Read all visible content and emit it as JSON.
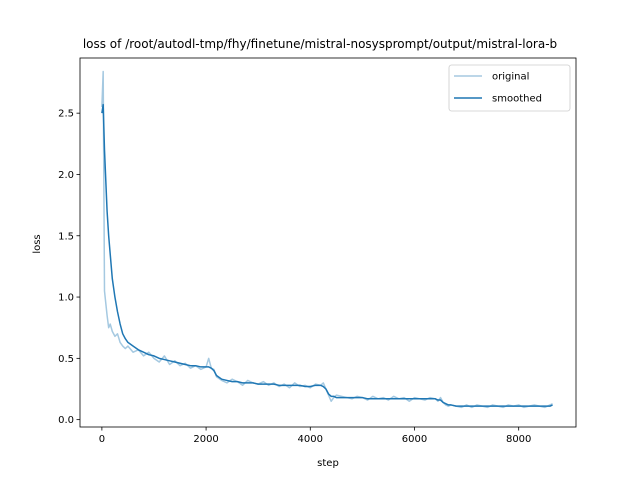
{
  "chart_data": {
    "type": "line",
    "title": "loss of /root/autodl-tmp/fhy/finetune/mistral-nosysprompt/output/mistral-lora-b",
    "xlabel": "step",
    "ylabel": "loss",
    "xlim": [
      -420,
      9100
    ],
    "ylim": [
      -0.06,
      2.95
    ],
    "xticks": [
      0,
      2000,
      4000,
      6000,
      8000
    ],
    "xtick_labels": [
      "0",
      "2000",
      "4000",
      "6000",
      "8000"
    ],
    "yticks": [
      0.0,
      0.5,
      1.0,
      1.5,
      2.0,
      2.5
    ],
    "ytick_labels": [
      "0.0",
      "0.5",
      "1.0",
      "1.5",
      "2.0",
      "2.5"
    ],
    "grid": false,
    "legend_position": "top-right",
    "series": [
      {
        "name": "original",
        "color": "#1f77b4",
        "opacity": 0.4,
        "x": [
          0,
          25,
          50,
          75,
          100,
          130,
          160,
          200,
          250,
          300,
          350,
          400,
          450,
          500,
          600,
          700,
          800,
          900,
          1000,
          1100,
          1200,
          1300,
          1400,
          1500,
          1600,
          1700,
          1800,
          1900,
          2000,
          2050,
          2100,
          2150,
          2200,
          2300,
          2400,
          2500,
          2600,
          2700,
          2800,
          2900,
          3000,
          3100,
          3200,
          3300,
          3400,
          3500,
          3600,
          3700,
          3800,
          3900,
          4000,
          4100,
          4200,
          4250,
          4300,
          4350,
          4400,
          4450,
          4500,
          4600,
          4700,
          4800,
          4900,
          5000,
          5100,
          5200,
          5300,
          5400,
          5500,
          5600,
          5700,
          5800,
          5900,
          6000,
          6100,
          6200,
          6300,
          6400,
          6450,
          6500,
          6550,
          6600,
          6650,
          6700,
          6800,
          6900,
          7000,
          7100,
          7200,
          7300,
          7400,
          7500,
          7600,
          7700,
          7800,
          7900,
          8000,
          8100,
          8200,
          8300,
          8400,
          8500,
          8600,
          8650
        ],
        "y": [
          2.55,
          2.84,
          1.05,
          0.95,
          0.85,
          0.75,
          0.78,
          0.72,
          0.68,
          0.7,
          0.63,
          0.6,
          0.58,
          0.6,
          0.55,
          0.57,
          0.52,
          0.55,
          0.5,
          0.47,
          0.52,
          0.45,
          0.48,
          0.44,
          0.46,
          0.42,
          0.44,
          0.41,
          0.43,
          0.5,
          0.42,
          0.41,
          0.35,
          0.32,
          0.3,
          0.33,
          0.31,
          0.28,
          0.32,
          0.3,
          0.29,
          0.31,
          0.28,
          0.3,
          0.27,
          0.29,
          0.26,
          0.3,
          0.27,
          0.28,
          0.26,
          0.29,
          0.28,
          0.3,
          0.25,
          0.2,
          0.15,
          0.18,
          0.2,
          0.19,
          0.18,
          0.17,
          0.19,
          0.18,
          0.16,
          0.19,
          0.17,
          0.18,
          0.16,
          0.19,
          0.17,
          0.18,
          0.15,
          0.18,
          0.17,
          0.16,
          0.18,
          0.17,
          0.15,
          0.18,
          0.14,
          0.12,
          0.11,
          0.12,
          0.11,
          0.1,
          0.12,
          0.1,
          0.12,
          0.11,
          0.1,
          0.12,
          0.11,
          0.1,
          0.12,
          0.11,
          0.12,
          0.1,
          0.11,
          0.12,
          0.11,
          0.1,
          0.12,
          0.13
        ]
      },
      {
        "name": "smoothed",
        "color": "#1f77b4",
        "opacity": 1.0,
        "x": [
          0,
          25,
          50,
          75,
          100,
          130,
          160,
          200,
          250,
          300,
          350,
          400,
          450,
          500,
          600,
          700,
          800,
          900,
          1000,
          1100,
          1200,
          1300,
          1400,
          1500,
          1600,
          1700,
          1800,
          1900,
          2000,
          2050,
          2100,
          2150,
          2200,
          2300,
          2400,
          2500,
          2600,
          2700,
          2800,
          2900,
          3000,
          3100,
          3200,
          3300,
          3400,
          3500,
          3600,
          3700,
          3800,
          3900,
          4000,
          4100,
          4200,
          4250,
          4300,
          4350,
          4400,
          4450,
          4500,
          4600,
          4700,
          4800,
          4900,
          5000,
          5100,
          5200,
          5300,
          5400,
          5500,
          5600,
          5700,
          5800,
          5900,
          6000,
          6100,
          6200,
          6300,
          6400,
          6450,
          6500,
          6550,
          6600,
          6650,
          6700,
          6800,
          6900,
          7000,
          7100,
          7200,
          7300,
          7400,
          7500,
          7600,
          7700,
          7800,
          7900,
          8000,
          8100,
          8200,
          8300,
          8400,
          8500,
          8600,
          8650
        ],
        "y": [
          2.5,
          2.57,
          2.2,
          1.95,
          1.7,
          1.5,
          1.35,
          1.15,
          1.0,
          0.88,
          0.78,
          0.7,
          0.66,
          0.63,
          0.6,
          0.57,
          0.55,
          0.53,
          0.52,
          0.5,
          0.49,
          0.48,
          0.47,
          0.46,
          0.45,
          0.44,
          0.44,
          0.43,
          0.43,
          0.43,
          0.42,
          0.4,
          0.36,
          0.33,
          0.32,
          0.31,
          0.31,
          0.3,
          0.3,
          0.3,
          0.29,
          0.29,
          0.29,
          0.29,
          0.28,
          0.28,
          0.28,
          0.28,
          0.28,
          0.27,
          0.27,
          0.28,
          0.28,
          0.27,
          0.25,
          0.21,
          0.19,
          0.19,
          0.18,
          0.18,
          0.18,
          0.18,
          0.18,
          0.18,
          0.17,
          0.17,
          0.17,
          0.17,
          0.17,
          0.17,
          0.17,
          0.17,
          0.17,
          0.17,
          0.17,
          0.17,
          0.17,
          0.17,
          0.16,
          0.16,
          0.14,
          0.13,
          0.12,
          0.12,
          0.11,
          0.11,
          0.11,
          0.11,
          0.11,
          0.11,
          0.11,
          0.11,
          0.11,
          0.11,
          0.11,
          0.11,
          0.11,
          0.11,
          0.11,
          0.11,
          0.11,
          0.11,
          0.11,
          0.12
        ]
      }
    ]
  }
}
